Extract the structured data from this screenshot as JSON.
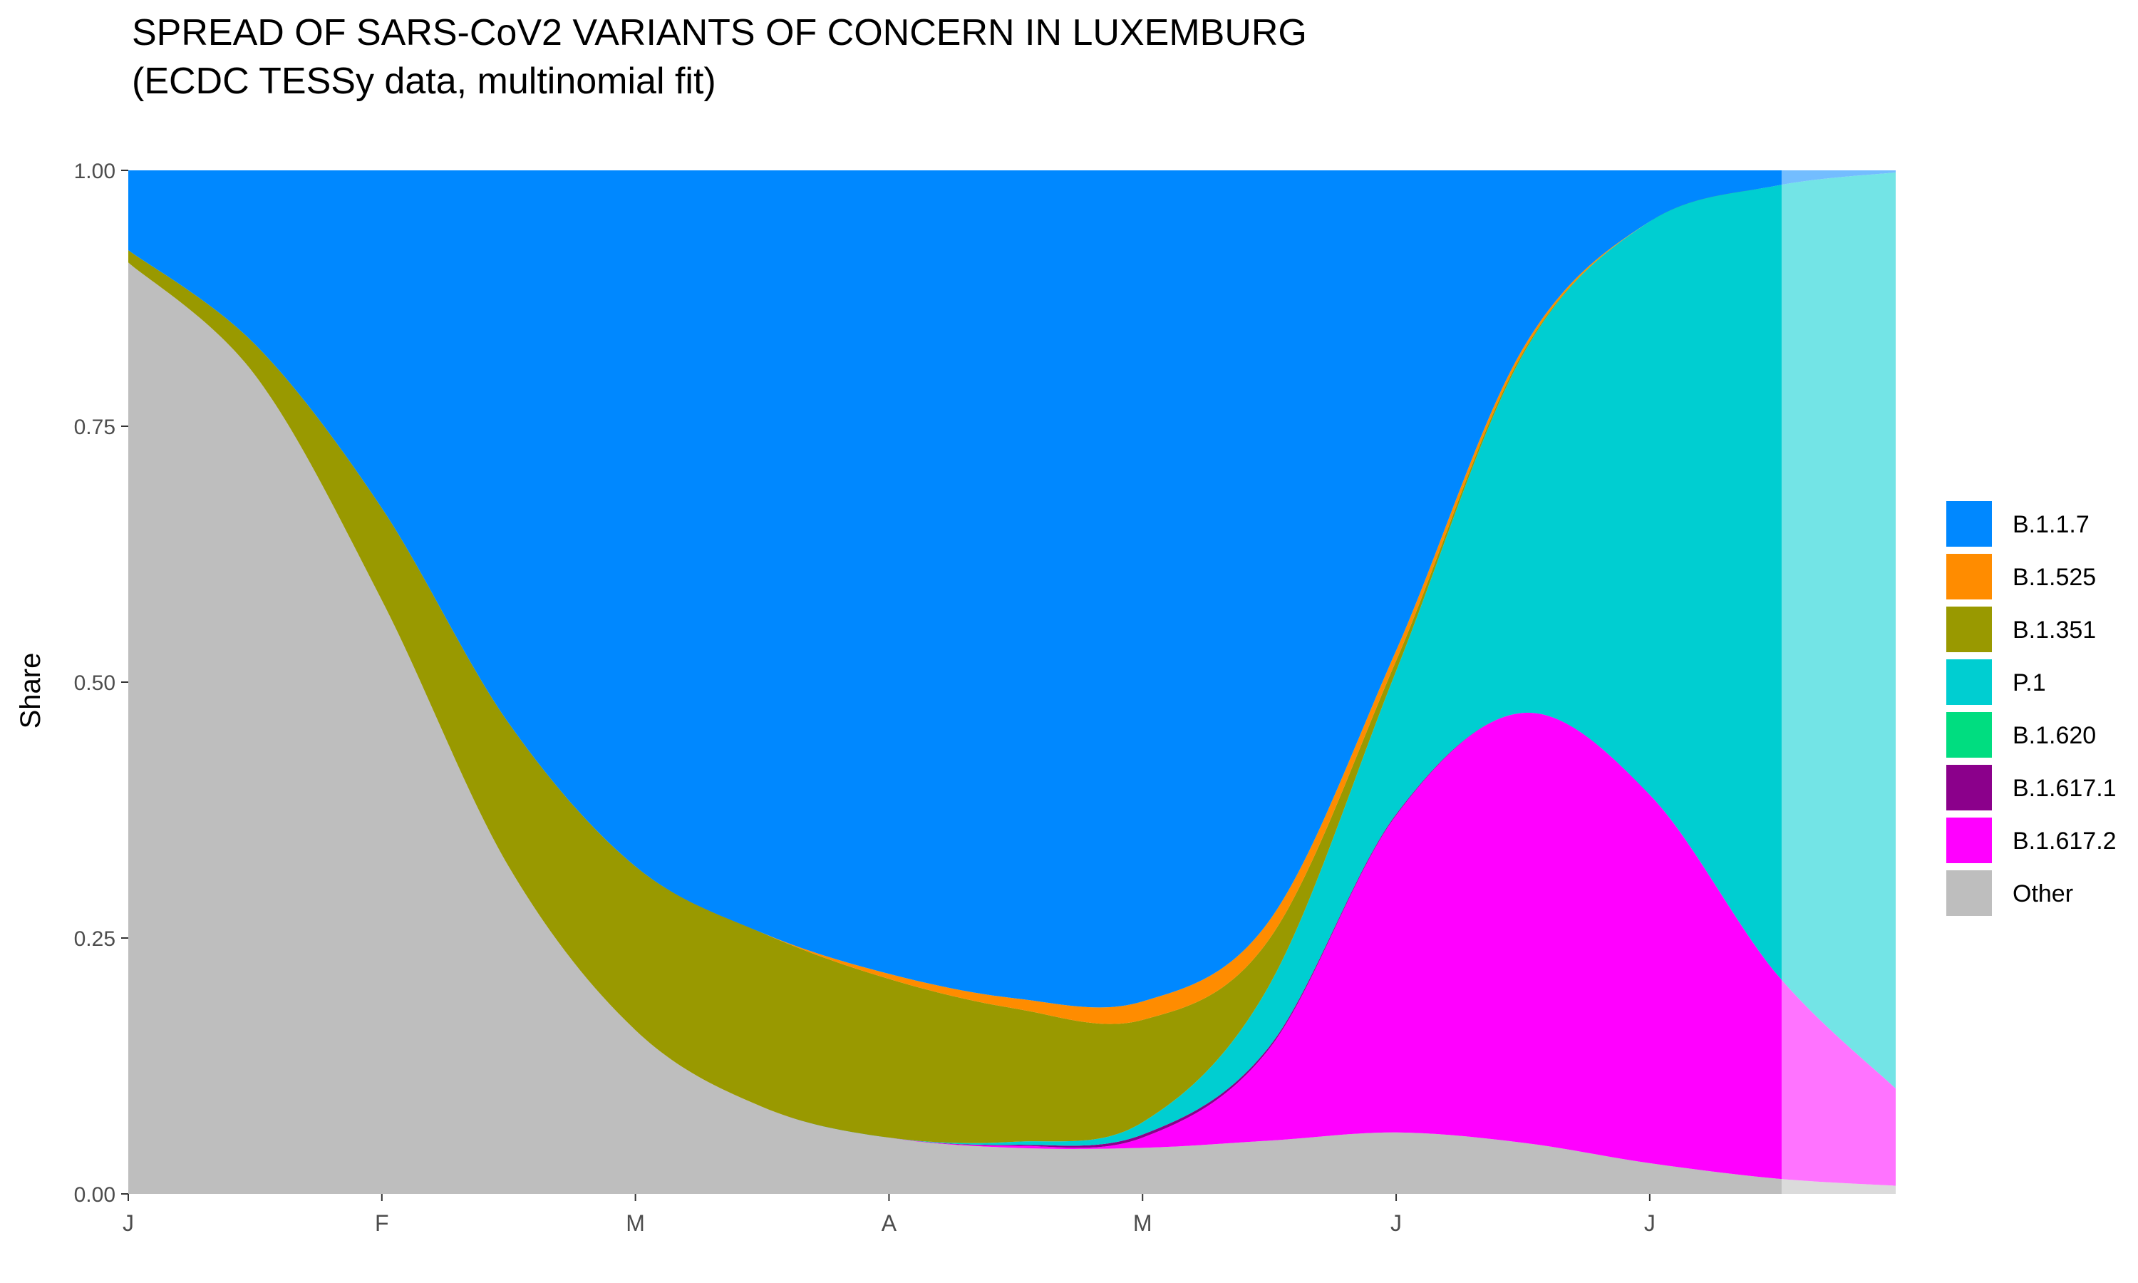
{
  "title": "SPREAD OF SARS-CoV2 VARIANTS OF CONCERN IN LUXEMBURG",
  "subtitle": "(ECDC TESSy data, multinomial fit)",
  "chart_data": {
    "type": "area",
    "stacked": "fill",
    "ylabel": "Share",
    "xlabel": "",
    "ylim": [
      0,
      1
    ],
    "yticks": [
      "0.00",
      "0.25",
      "0.50",
      "0.75",
      "1.00"
    ],
    "xtick_labels": [
      "J",
      "F",
      "M",
      "A",
      "M",
      "J",
      "J"
    ],
    "x_unit": "month",
    "x": [
      1.0,
      1.5,
      2.0,
      2.5,
      3.0,
      3.5,
      4.0,
      4.5,
      5.0,
      5.5,
      6.0,
      6.5,
      7.0,
      7.5,
      7.9
    ],
    "x_range": [
      1.0,
      7.97
    ],
    "forecast_from": 7.52,
    "legend_position": "right",
    "series": [
      {
        "name": "Other",
        "color": "#BEBEBE",
        "values": [
          0.91,
          0.8,
          0.58,
          0.32,
          0.16,
          0.085,
          0.055,
          0.045,
          0.045,
          0.052,
          0.06,
          0.05,
          0.03,
          0.015,
          0.008
        ]
      },
      {
        "name": "B.1.617.2",
        "color": "#FF00FF",
        "values": [
          0,
          0,
          0,
          0,
          0,
          0,
          0,
          0.002,
          0.01,
          0.09,
          0.31,
          0.42,
          0.36,
          0.2,
          0.095
        ]
      },
      {
        "name": "B.1.617.1",
        "color": "#8B008B",
        "values": [
          0,
          0,
          0,
          0,
          0,
          0,
          0,
          0.001,
          0.003,
          0.002,
          0.001,
          0,
          0,
          0,
          0
        ]
      },
      {
        "name": "B.1.620",
        "color": "#00DD80",
        "values": [
          0,
          0,
          0,
          0,
          0,
          0,
          0,
          0,
          0,
          0,
          0,
          0,
          0,
          0,
          0
        ]
      },
      {
        "name": "P.1",
        "color": "#00CED1",
        "values": [
          0,
          0,
          0,
          0,
          0,
          0,
          0,
          0.003,
          0.012,
          0.06,
          0.14,
          0.35,
          0.56,
          0.77,
          0.895
        ]
      },
      {
        "name": "B.1.351",
        "color": "#999900",
        "values": [
          0.012,
          0.03,
          0.09,
          0.14,
          0.16,
          0.17,
          0.155,
          0.13,
          0.1,
          0.045,
          0.01,
          0.002,
          0,
          0,
          0
        ]
      },
      {
        "name": "B.1.525",
        "color": "#FF8C00",
        "values": [
          0,
          0,
          0,
          0,
          0,
          0,
          0.005,
          0.01,
          0.018,
          0.018,
          0.01,
          0.004,
          0,
          0,
          0
        ]
      },
      {
        "name": "B.1.1.7",
        "color": "#0088FF",
        "values": [
          0.078,
          0.17,
          0.33,
          0.54,
          0.68,
          0.745,
          0.785,
          0.809,
          0.812,
          0.733,
          0.469,
          0.174,
          0.05,
          0.015,
          0.002
        ]
      }
    ],
    "legend_order": [
      "B.1.1.7",
      "B.1.525",
      "B.1.351",
      "P.1",
      "B.1.620",
      "B.1.617.1",
      "B.1.617.2",
      "Other"
    ]
  }
}
